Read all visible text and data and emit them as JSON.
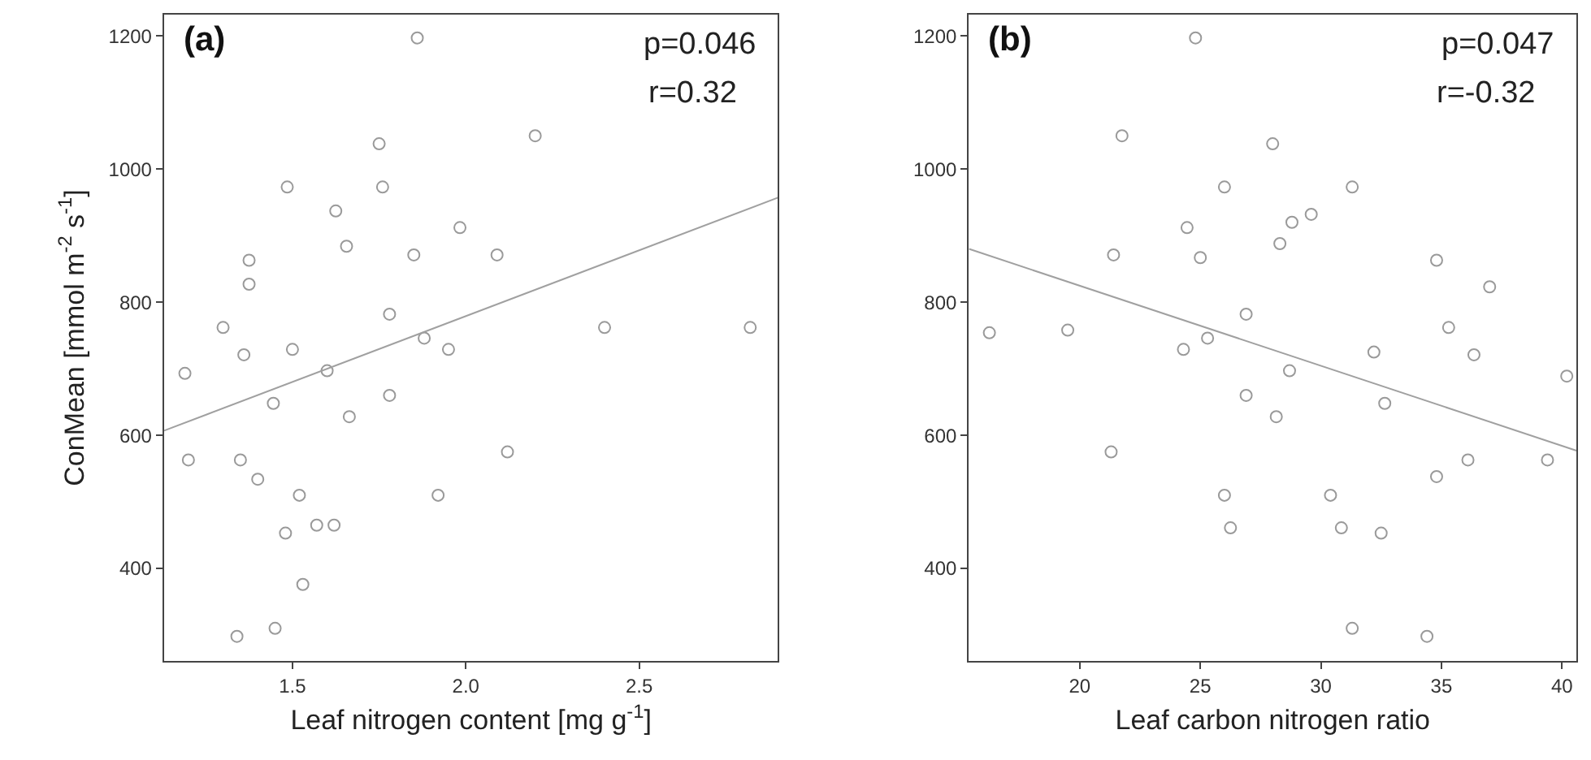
{
  "chart_data": [
    {
      "type": "scatter",
      "xlabel": "Leaf nitrogen content [mg g$^{-1}$]",
      "ylabel": "ConMean [mmol m$^{-2}$ s$^{-1}$]",
      "annotations": [
        "(a)",
        "p=0.046",
        "r=0.32"
      ],
      "xlim": [
        1.13,
        2.9
      ],
      "xticks": [
        {
          "value": 1.5,
          "label": "1.5"
        },
        {
          "value": 2.0,
          "label": "2.0"
        },
        {
          "value": 2.5,
          "label": "2.5"
        }
      ],
      "ylim": [
        261,
        1232
      ],
      "yticks": [
        400,
        600,
        800,
        1000,
        1200
      ],
      "series": [
        {
          "marker": "circle",
          "color": "#9a9a9a",
          "x": [
            1.86,
            2.2,
            1.75,
            1.485,
            1.76,
            1.625,
            1.983,
            1.656,
            1.375,
            1.85,
            2.09,
            1.375,
            1.78,
            1.3,
            1.88,
            1.95,
            1.5,
            1.36,
            1.19,
            1.6,
            1.78,
            1.445,
            1.664,
            2.4,
            2.82,
            1.2,
            1.35,
            2.12,
            1.4,
            1.52,
            1.92,
            1.48,
            1.57,
            1.62,
            1.53,
            1.45,
            1.34
          ],
          "values": [
            1197,
            1050,
            1038,
            973,
            973,
            937,
            912,
            884,
            863,
            871,
            871,
            827,
            782,
            762,
            746,
            729,
            729,
            721,
            693,
            697,
            660,
            648,
            628,
            762,
            762,
            563,
            563,
            575,
            534,
            510,
            510,
            453,
            465,
            465,
            376,
            310,
            298
          ]
        },
        {
          "type": "line",
          "marker": "none",
          "line_style": "solid",
          "color": "#a0a0a0",
          "x": [
            1.13,
            2.9
          ],
          "values": [
            607,
            957
          ]
        }
      ]
    },
    {
      "type": "scatter",
      "xlabel": "Leaf carbon nitrogen ratio",
      "annotations": [
        "(b)",
        "p=0.047",
        "r=-0.32"
      ],
      "xlim": [
        15.4,
        40.6
      ],
      "xticks": [
        20,
        25,
        30,
        35,
        40
      ],
      "ylim": [
        261,
        1232
      ],
      "yticks": [
        400,
        600,
        800,
        1000,
        1200
      ],
      "series": [
        {
          "marker": "circle",
          "color": "#9a9a9a",
          "x": [
            24.8,
            21.75,
            28.0,
            26.0,
            31.3,
            29.6,
            28.8,
            24.45,
            28.3,
            21.4,
            25.0,
            34.8,
            37.0,
            26.9,
            16.25,
            19.5,
            25.3,
            35.3,
            24.3,
            32.2,
            36.35,
            28.7,
            40.2,
            26.9,
            32.65,
            28.15,
            21.3,
            36.1,
            39.4,
            34.8,
            26.0,
            30.4,
            26.25,
            30.85,
            32.5,
            31.3,
            34.4
          ],
          "values": [
            1197,
            1050,
            1038,
            973,
            973,
            932,
            920,
            912,
            888,
            871,
            867,
            863,
            823,
            782,
            754,
            758,
            746,
            762,
            729,
            725,
            721,
            697,
            689,
            660,
            648,
            628,
            575,
            563,
            563,
            538,
            510,
            510,
            461,
            461,
            453,
            310,
            298
          ]
        },
        {
          "type": "line",
          "marker": "none",
          "line_style": "solid",
          "color": "#a0a0a0",
          "x": [
            15.4,
            40.6
          ],
          "values": [
            880,
            577
          ]
        }
      ]
    }
  ]
}
